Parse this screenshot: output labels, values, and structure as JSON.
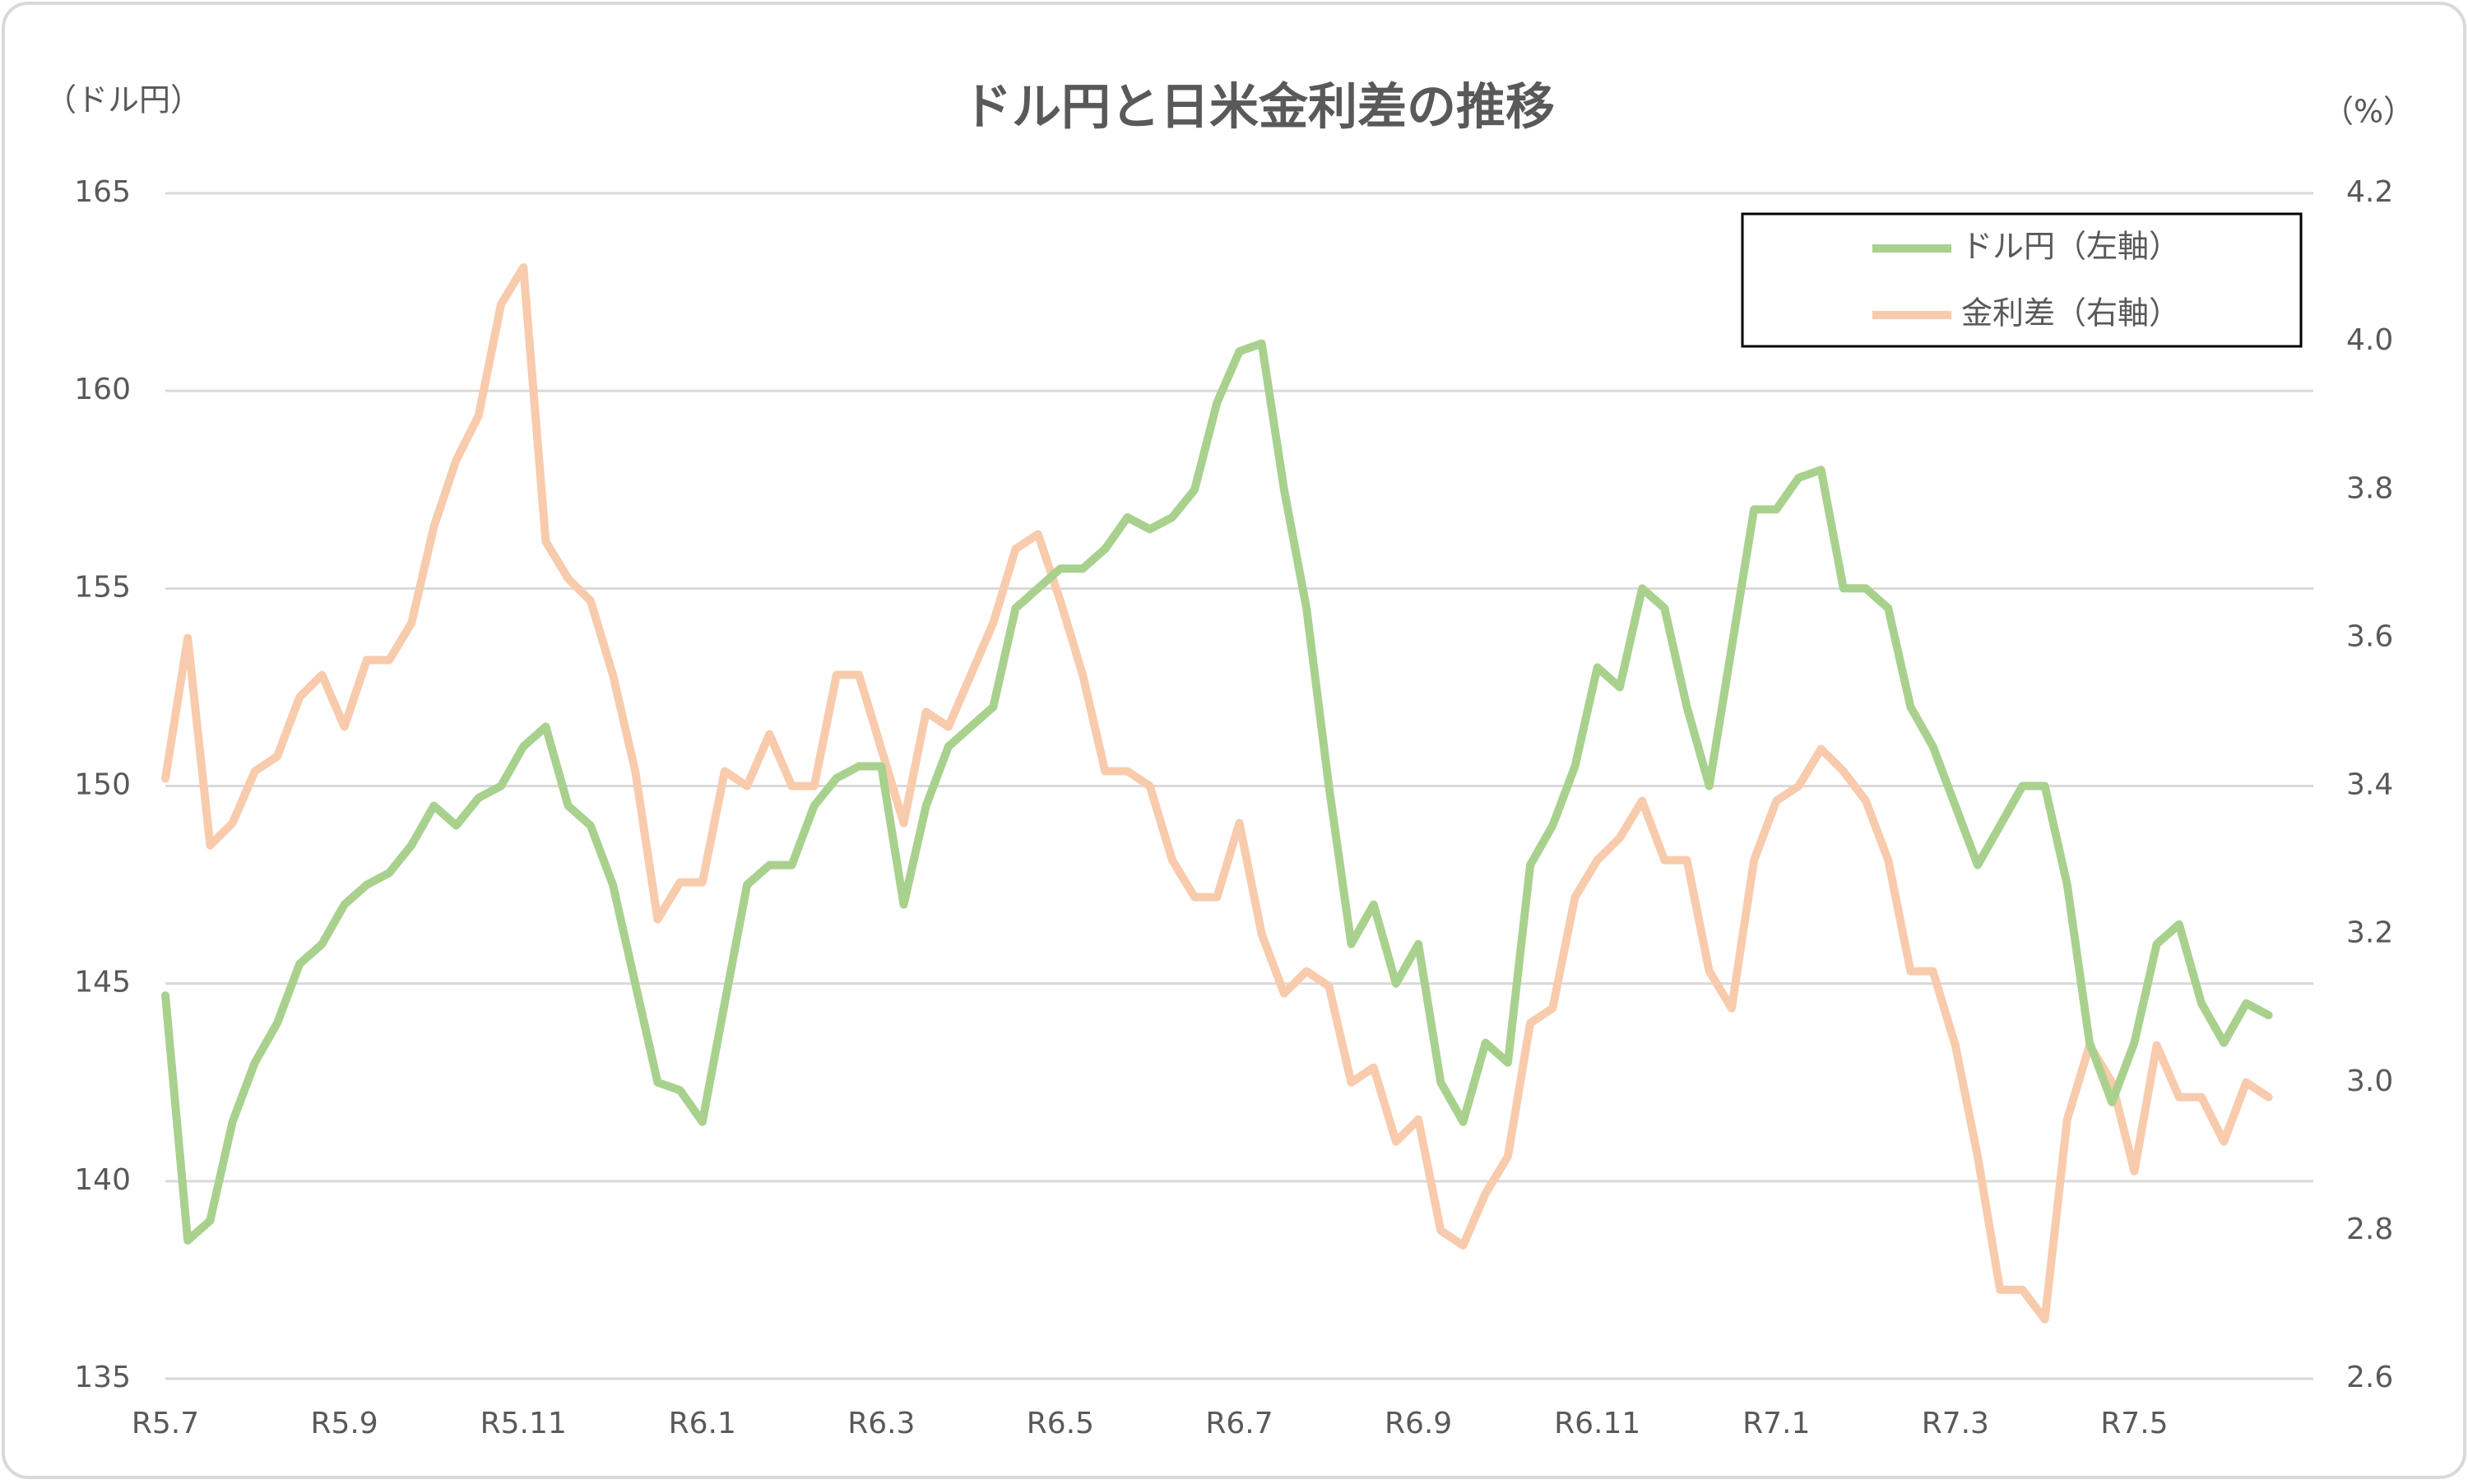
{
  "chart_data": {
    "type": "line",
    "title": "ドル円と日米金利差の推移",
    "y_label": "（ドル円）",
    "y2_label": "（%）",
    "categories": [
      "R5.7",
      null,
      null,
      null,
      null,
      null,
      null,
      null,
      "R5.9",
      null,
      null,
      null,
      null,
      null,
      null,
      null,
      "R5.11",
      null,
      null,
      null,
      null,
      null,
      null,
      null,
      "R6.1",
      null,
      null,
      null,
      null,
      null,
      null,
      null,
      "R6.3",
      null,
      null,
      null,
      null,
      null,
      null,
      null,
      "R6.5",
      null,
      null,
      null,
      null,
      null,
      null,
      null,
      "R6.7",
      null,
      null,
      null,
      null,
      null,
      null,
      null,
      "R6.9",
      null,
      null,
      null,
      null,
      null,
      null,
      null,
      "R6.11",
      null,
      null,
      null,
      null,
      null,
      null,
      null,
      "R7.1",
      null,
      null,
      null,
      null,
      null,
      null,
      null,
      "R7.3",
      null,
      null,
      null,
      null,
      null,
      null,
      null,
      "R7.5",
      null,
      null,
      null,
      null,
      null,
      null
    ],
    "series": [
      {
        "name": "ドル円（左軸）",
        "color": "#a9d18e",
        "axis": "y",
        "values": [
          144.7,
          138.5,
          139.0,
          141.5,
          143.0,
          144.0,
          145.5,
          146.0,
          147.0,
          147.5,
          147.8,
          148.5,
          149.5,
          149.0,
          149.7,
          150.0,
          151.0,
          151.5,
          149.5,
          149.0,
          147.5,
          145.0,
          142.5,
          142.3,
          141.5,
          144.5,
          147.5,
          148.0,
          148.0,
          149.5,
          150.2,
          150.5,
          150.5,
          147.0,
          149.5,
          151.0,
          151.5,
          152.0,
          154.5,
          155.0,
          155.5,
          155.5,
          156.0,
          156.8,
          156.5,
          156.8,
          157.5,
          159.7,
          161.0,
          161.2,
          157.5,
          154.5,
          150.0,
          146.0,
          147.0,
          145.0,
          146.0,
          142.5,
          141.5,
          143.5,
          143.0,
          148.0,
          149.0,
          150.5,
          153.0,
          152.5,
          155.0,
          154.5,
          152.0,
          150.0,
          153.5,
          157.0,
          157.0,
          157.8,
          158.0,
          155.0,
          155.0,
          154.5,
          152.0,
          151.0,
          149.5,
          148.0,
          149.0,
          150.0,
          150.0,
          147.5,
          143.5,
          142.0,
          143.5,
          146.0,
          146.5,
          144.5,
          143.5,
          144.5,
          144.2
        ]
      },
      {
        "name": "金利差（右軸）",
        "color": "#f8cbad",
        "axis": "y2",
        "values": [
          3.41,
          3.6,
          3.32,
          3.35,
          3.42,
          3.44,
          3.52,
          3.55,
          3.48,
          3.57,
          3.57,
          3.62,
          3.75,
          3.84,
          3.9,
          4.05,
          4.1,
          3.73,
          3.68,
          3.65,
          3.55,
          3.42,
          3.22,
          3.27,
          3.27,
          3.42,
          3.4,
          3.47,
          3.4,
          3.4,
          3.55,
          3.55,
          3.45,
          3.35,
          3.5,
          3.48,
          3.55,
          3.62,
          3.72,
          3.74,
          3.65,
          3.55,
          3.42,
          3.42,
          3.4,
          3.3,
          3.25,
          3.25,
          3.35,
          3.2,
          3.12,
          3.15,
          3.13,
          3.0,
          3.02,
          2.92,
          2.95,
          2.8,
          2.78,
          2.85,
          2.9,
          3.08,
          3.1,
          3.25,
          3.3,
          3.33,
          3.38,
          3.3,
          3.3,
          3.15,
          3.1,
          3.3,
          3.38,
          3.4,
          3.45,
          3.42,
          3.38,
          3.3,
          3.15,
          3.15,
          3.05,
          2.9,
          2.72,
          2.72,
          2.68,
          2.95,
          3.05,
          3.0,
          2.88,
          3.05,
          2.98,
          2.98,
          2.92,
          3.0,
          2.98
        ]
      }
    ],
    "ylim": [
      135,
      165
    ],
    "yticks": [
      135,
      140,
      145,
      150,
      155,
      160,
      165
    ],
    "y2lim": [
      2.6,
      4.2
    ],
    "y2ticks": [
      2.6,
      2.8,
      {
        "value": 3,
        "label": "3.0"
      },
      3.2,
      3.4,
      3.6,
      3.8,
      {
        "value": 4,
        "label": "4.0"
      },
      4.2
    ],
    "grid": true,
    "legend": "top-right"
  }
}
